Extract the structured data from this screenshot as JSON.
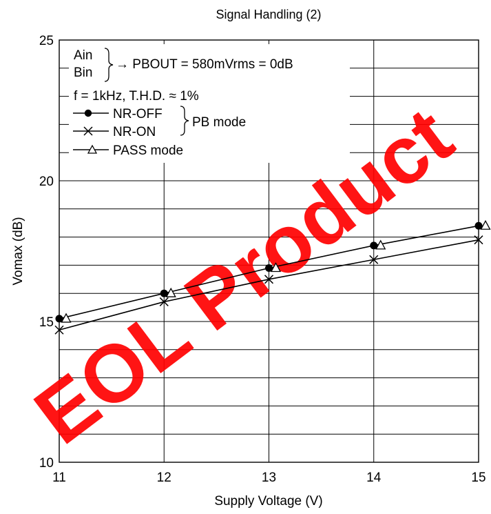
{
  "chart_data": {
    "type": "line",
    "title": "Signal Handling (2)",
    "xlabel": "Supply Voltage  (V)",
    "ylabel": "Vomax  (dB)",
    "xlim": [
      11,
      15
    ],
    "ylim": [
      10,
      25
    ],
    "x_ticks": [
      11,
      12,
      13,
      14,
      15
    ],
    "y_ticks_labeled": [
      10,
      15,
      20,
      25
    ],
    "grid": true,
    "x": [
      11,
      12,
      13,
      14,
      15
    ],
    "series": [
      {
        "name": "NR-OFF",
        "marker": "filled-circle",
        "values": [
          15.1,
          16.0,
          16.9,
          17.7,
          18.4
        ]
      },
      {
        "name": "NR-ON",
        "marker": "x",
        "values": [
          14.7,
          15.7,
          16.5,
          17.2,
          17.9
        ]
      },
      {
        "name": "PASS mode",
        "marker": "open-triangle",
        "values": [
          15.1,
          16.0,
          16.9,
          17.7,
          18.4
        ]
      }
    ],
    "legend": {
      "placement": "top-left",
      "brace_inputs": [
        "Ain",
        "Bin"
      ],
      "arrow_text": "→ PBOUT = 580mVrms = 0dB",
      "conditions": "f = 1kHz, T.H.D. ≈ 1%",
      "pb_mode_label": "PB mode"
    }
  },
  "watermark": {
    "text": "EOL Product",
    "color": "#ff0000"
  }
}
